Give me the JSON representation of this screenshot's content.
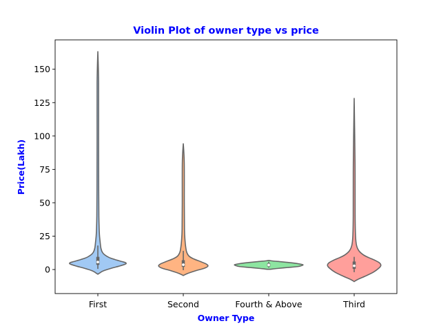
{
  "chart_data": {
    "type": "violin",
    "title": "Violin Plot of owner type vs price",
    "xlabel": "Owner Type",
    "ylabel": "Price(Lakh)",
    "ylim": [
      -18,
      172
    ],
    "yticks": [
      0,
      25,
      50,
      75,
      100,
      125,
      150
    ],
    "grid": false,
    "categories": [
      "First",
      "Second",
      "Fourth & Above",
      "Third"
    ],
    "colors": [
      "#a1c9f4",
      "#ffb482",
      "#8de5a1",
      "#ff9f9b"
    ],
    "series": [
      {
        "category": "First",
        "min": -3.5,
        "max": 163.5,
        "q1": 3.5,
        "median": 5.6,
        "q3": 9.5,
        "whisker_low": 0.5,
        "whisker_high": 18,
        "density": [
          [
            -3.5,
            0.0
          ],
          [
            -2.5,
            0.06
          ],
          [
            -1,
            0.16
          ],
          [
            1,
            0.4
          ],
          [
            2.5,
            0.62
          ],
          [
            4,
            0.8
          ],
          [
            5,
            0.82
          ],
          [
            6,
            0.7
          ],
          [
            7.5,
            0.5
          ],
          [
            9,
            0.33
          ],
          [
            11,
            0.2
          ],
          [
            13,
            0.13
          ],
          [
            16,
            0.09
          ],
          [
            20,
            0.07
          ],
          [
            25,
            0.05
          ],
          [
            30,
            0.04
          ],
          [
            40,
            0.03
          ],
          [
            60,
            0.025
          ],
          [
            100,
            0.022
          ],
          [
            140,
            0.022
          ],
          [
            163.5,
            0.0
          ]
        ]
      },
      {
        "category": "Second",
        "min": -4.5,
        "max": 94.5,
        "q1": 2,
        "median": 3.6,
        "q3": 7,
        "whisker_low": -0.5,
        "whisker_high": 14,
        "density": [
          [
            -4.5,
            0.0
          ],
          [
            -3,
            0.12
          ],
          [
            -1,
            0.35
          ],
          [
            1,
            0.62
          ],
          [
            2.5,
            0.72
          ],
          [
            4,
            0.68
          ],
          [
            6,
            0.5
          ],
          [
            8,
            0.3
          ],
          [
            10,
            0.17
          ],
          [
            13,
            0.1
          ],
          [
            17,
            0.07
          ],
          [
            22,
            0.05
          ],
          [
            30,
            0.035
          ],
          [
            50,
            0.03
          ],
          [
            80,
            0.028
          ],
          [
            94.5,
            0.0
          ]
        ]
      },
      {
        "category": "Fourth & Above",
        "min": 0.2,
        "max": 6.8,
        "q1": 2.3,
        "median": 3.4,
        "q3": 4.6,
        "whisker_low": 1.4,
        "whisker_high": 5.8,
        "density": [
          [
            0.2,
            0.05
          ],
          [
            0.8,
            0.25
          ],
          [
            1.5,
            0.55
          ],
          [
            2.2,
            0.85
          ],
          [
            3,
            0.97
          ],
          [
            3.6,
            1.0
          ],
          [
            4.2,
            0.9
          ],
          [
            5,
            0.68
          ],
          [
            5.8,
            0.38
          ],
          [
            6.4,
            0.12
          ],
          [
            6.8,
            0.02
          ]
        ]
      },
      {
        "category": "Third",
        "min": -9,
        "max": 128.5,
        "q1": 0.5,
        "median": 2.8,
        "q3": 6,
        "whisker_low": -2,
        "whisker_high": 9.5,
        "density": [
          [
            -9,
            0.0
          ],
          [
            -7.5,
            0.1
          ],
          [
            -5,
            0.32
          ],
          [
            -2,
            0.56
          ],
          [
            1,
            0.72
          ],
          [
            3,
            0.78
          ],
          [
            5,
            0.74
          ],
          [
            7,
            0.6
          ],
          [
            9,
            0.42
          ],
          [
            11,
            0.27
          ],
          [
            14,
            0.14
          ],
          [
            18,
            0.07
          ],
          [
            25,
            0.04
          ],
          [
            40,
            0.028
          ],
          [
            80,
            0.025
          ],
          [
            128.5,
            0.0
          ]
        ]
      }
    ]
  }
}
